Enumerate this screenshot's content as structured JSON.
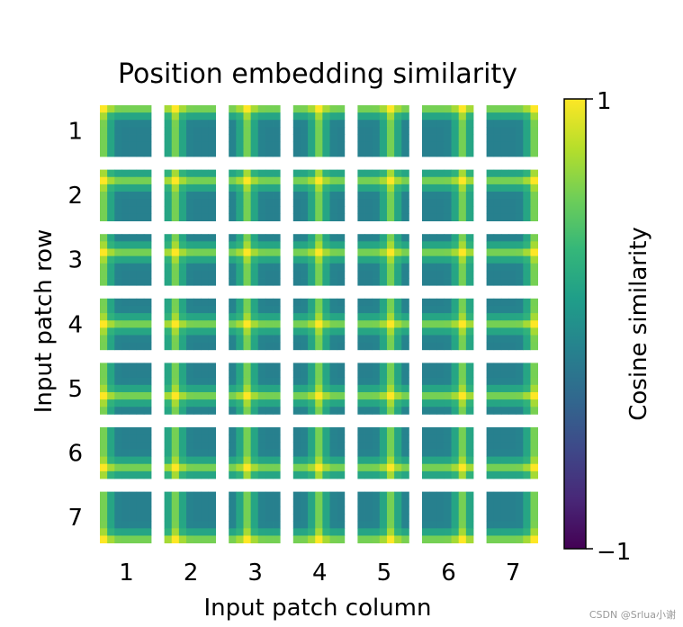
{
  "chart_data": {
    "type": "heatmap",
    "title": "Position embedding similarity",
    "xlabel": "Input patch column",
    "ylabel": "Input patch row",
    "rows": [
      "1",
      "2",
      "3",
      "4",
      "5",
      "6",
      "7"
    ],
    "columns": [
      "1",
      "2",
      "3",
      "4",
      "5",
      "6",
      "7"
    ],
    "subgrid_size": 7,
    "colormap": "viridis",
    "colorbar": {
      "label": "Cosine similarity",
      "min": -1,
      "max": 1,
      "min_label": "−1",
      "max_label": "1"
    },
    "pattern": "Each tile is the cosine similarity between the position embedding of the patch at (row, column) and every other patch; similarity is highest at the tile's own position and along its row and column, moderate elsewhere.",
    "value_model": {
      "self": 1.0,
      "same_row_or_column_peak": 0.62,
      "background": 0.05
    }
  },
  "watermark": "CSDN @Srlua小谢",
  "colors": {
    "viridis": [
      "#440154",
      "#482878",
      "#3e4989",
      "#31688e",
      "#26828e",
      "#1f9e89",
      "#35b779",
      "#6ece58",
      "#b5de2b",
      "#fde725"
    ]
  }
}
